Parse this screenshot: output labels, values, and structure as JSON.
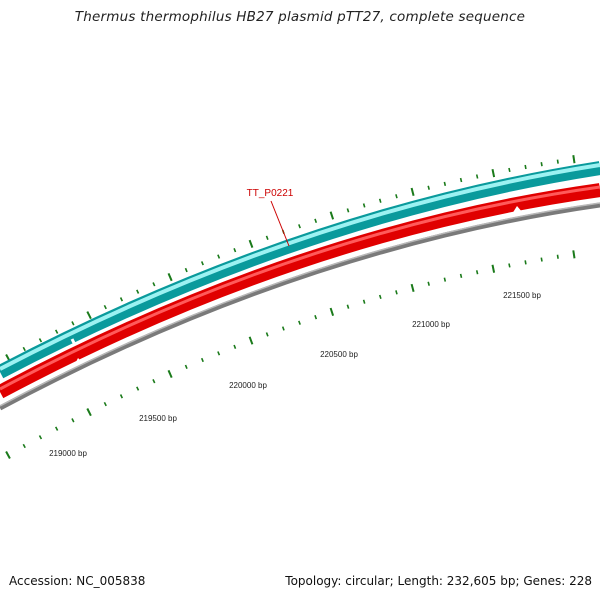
{
  "title": "Thermus thermophilus HB27 plasmid pTT27, complete sequence",
  "footer": {
    "accession": "Accession: NC_005838",
    "summary": "Topology: circular; Length: 232,605 bp; Genes: 228"
  },
  "feature_labels": [
    {
      "text": "TT_P0221"
    }
  ],
  "scale_labels": [
    {
      "text": "219000 bp"
    },
    {
      "text": "219500 bp"
    },
    {
      "text": "220000 bp"
    },
    {
      "text": "220500 bp"
    },
    {
      "text": "221000 bp"
    },
    {
      "text": "221500 bp"
    }
  ],
  "colors": {
    "forward_strand": "#1fc7c9",
    "reverse_strand": "#f20000",
    "backbone": "#808080",
    "ticks": "#1a7a1a",
    "label_accent": "#cc0000"
  }
}
